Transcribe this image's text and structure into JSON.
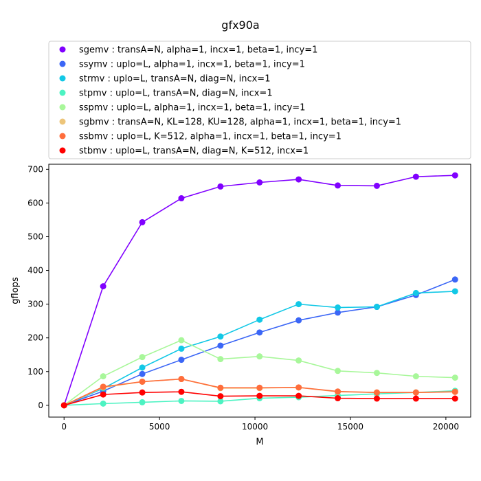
{
  "chart_data": {
    "type": "line",
    "title": "gfx90a",
    "xlabel": "M",
    "ylabel": "gflops",
    "xlim": [
      -800,
      21300
    ],
    "ylim": [
      -35,
      715
    ],
    "xticks": [
      0,
      5000,
      10000,
      15000,
      20000
    ],
    "yticks": [
      0,
      100,
      200,
      300,
      400,
      500,
      600,
      700
    ],
    "grid": false,
    "legend_position": "top",
    "x": [
      1,
      2049,
      4097,
      6145,
      8193,
      10241,
      12289,
      14337,
      16385,
      18433,
      20481
    ],
    "series": [
      {
        "name": "sgemv :  transA=N, alpha=1, incx=1, beta=1, incy=1",
        "color": "#8000ff",
        "values": [
          0,
          353,
          543,
          614,
          649,
          661,
          670,
          652,
          651,
          678,
          682
        ]
      },
      {
        "name": "ssymv :  uplo=L, alpha=1, incx=1, beta=1, incy=1",
        "color": "#3b66f6",
        "values": [
          0,
          42,
          93,
          135,
          177,
          216,
          252,
          275,
          292,
          327,
          373
        ]
      },
      {
        "name": "strmv :  uplo=L, transA=N, diag=N, incx=1",
        "color": "#12c8e6",
        "values": [
          0,
          50,
          112,
          168,
          204,
          254,
          300,
          290,
          292,
          333,
          338
        ]
      },
      {
        "name": "stpmv :  uplo=L, transA=N, diag=N, incx=1",
        "color": "#4cf3c2",
        "values": [
          0,
          5,
          9,
          13,
          12,
          21,
          24,
          29,
          34,
          38,
          43
        ]
      },
      {
        "name": "sspmv :  uplo=L, alpha=1, incx=1, beta=1, incy=1",
        "color": "#a8f79a",
        "values": [
          0,
          86,
          143,
          193,
          137,
          145,
          133,
          102,
          96,
          86,
          82
        ]
      },
      {
        "name": "sgbmv :  transA=N, KL=128, KU=128, alpha=1, incx=1, beta=1, incy=1",
        "color": "#edc57a",
        "values": [
          0,
          53,
          70,
          78,
          51,
          51,
          53,
          40,
          38,
          38,
          40
        ]
      },
      {
        "name": "ssbmv :  uplo=L, K=512, alpha=1, incx=1, beta=1, incy=1",
        "color": "#ff6d3b",
        "values": [
          0,
          55,
          70,
          78,
          52,
          52,
          53,
          41,
          38,
          38,
          40
        ]
      },
      {
        "name": "stbmv :  uplo=L, transA=N, diag=N, K=512, incx=1",
        "color": "#ff0000",
        "values": [
          0,
          32,
          38,
          40,
          27,
          28,
          28,
          21,
          20,
          20,
          20
        ]
      }
    ]
  }
}
